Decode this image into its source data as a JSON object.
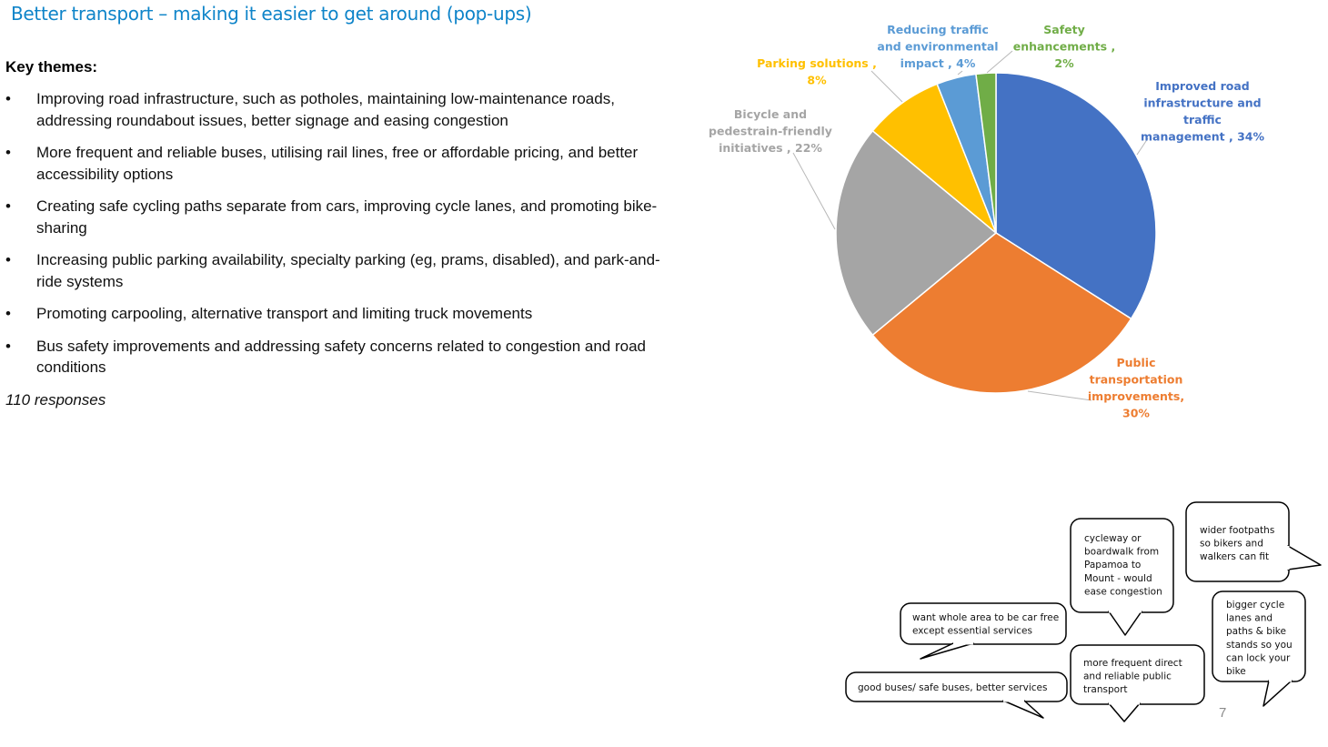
{
  "slide": {
    "title": "Better transport – making it easier to get around (pop-ups)",
    "page_number": "7"
  },
  "key_themes": {
    "heading": "Key themes:",
    "bullet_glyph": "•",
    "items": [
      "Improving road infrastructure, such as potholes, maintaining low-maintenance roads, addressing roundabout issues, better signage and easing congestion",
      "More frequent and reliable buses, utilising rail lines, free or affordable pricing, and better accessibility options",
      "Creating safe cycling paths separate from cars, improving cycle lanes, and promoting bike-sharing",
      "Increasing public parking availability, specialty parking (eg, prams, disabled), and park-and-ride systems",
      "Promoting carpooling, alternative transport and limiting truck movements",
      "Bus safety improvements and addressing safety concerns related to congestion and road conditions"
    ],
    "responses": "110 responses"
  },
  "chart_data": {
    "type": "pie",
    "categories": [
      "Improved road infrastructure and traffic management",
      "Public transportation improvements",
      "Bicycle and pedestrain-friendly initiatives",
      "Parking solutions",
      "Reducing traffic and environmental impact",
      "Safety enhancements"
    ],
    "values": [
      34,
      30,
      22,
      8,
      4,
      2
    ],
    "colors": [
      "#4472c4",
      "#ed7d31",
      "#a5a5a5",
      "#ffc000",
      "#5b9bd5",
      "#70ad47"
    ],
    "label_lines": [
      [
        "Improved road",
        "infrastructure and",
        "traffic",
        "management , 34%"
      ],
      [
        "Public",
        "transportation",
        "improvements,",
        "30%"
      ],
      [
        "Bicycle and",
        "pedestrain-friendly",
        "initiatives , 22%"
      ],
      [
        "Parking solutions ,",
        "8%"
      ],
      [
        "Reducing traffic",
        "and environmental",
        "impact , 4%"
      ],
      [
        "Safety",
        "enhancements ,",
        "2%"
      ]
    ],
    "start_angle": "12 o'clock, clockwise",
    "legend": "none (data labels with leader lines)"
  },
  "speech_bubbles": [
    [
      "cycleway or",
      "boardwalk from",
      "Papamoa to",
      "Mount - would",
      "ease congestion"
    ],
    [
      "wider footpaths",
      "so bikers and",
      "walkers can fit"
    ],
    [
      "want whole area to be car free",
      "except essential services"
    ],
    [
      "bigger cycle",
      "lanes and",
      "paths & bike",
      "stands so you",
      "can lock your",
      "bike"
    ],
    [
      "more frequent direct",
      "and reliable public",
      "transport"
    ],
    [
      "good buses/ safe buses, better services"
    ]
  ]
}
